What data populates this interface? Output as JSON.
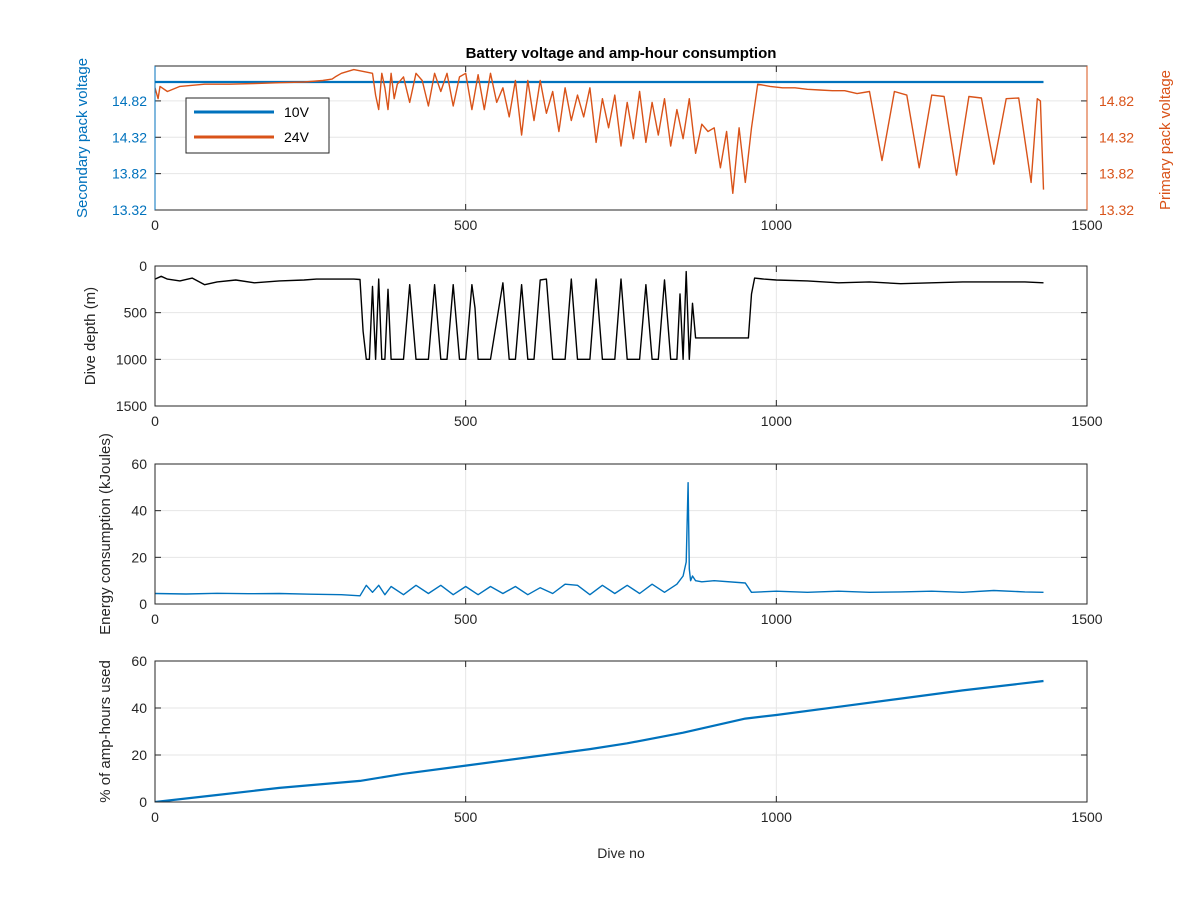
{
  "figure": {
    "title": "Battery voltage and amp-hour consumption",
    "shared_xlabel": "Dive no"
  },
  "colors": {
    "blue": "#0072bd",
    "orange": "#d95319",
    "black": "#000000",
    "grid": "#e6e6e6",
    "axis": "#262626"
  },
  "chart_data": [
    {
      "id": "voltage",
      "type": "line",
      "title": "Battery voltage and amp-hour consumption",
      "xlabel": "",
      "ylabel": "Secondary pack voltage",
      "ylabel_right": "Primary pack voltage",
      "xlim": [
        0,
        1500
      ],
      "xticks": [
        "0",
        "500",
        "1000",
        "1500"
      ],
      "ylim": [
        13.32,
        15.3
      ],
      "yticks": [
        "13.32",
        "13.82",
        "14.32",
        "14.82"
      ],
      "ylim_right": [
        13.32,
        15.3
      ],
      "yticks_right": [
        "13.32",
        "13.82",
        "14.32",
        "14.82"
      ],
      "grid": true,
      "legend": {
        "placement": "top-left",
        "entries": [
          "10V",
          "24V"
        ]
      },
      "series": [
        {
          "name": "10V",
          "axis": "left",
          "color": "#0072bd",
          "x": [
            0,
            1430
          ],
          "y": [
            15.08,
            15.08
          ]
        },
        {
          "name": "24V",
          "axis": "right",
          "color": "#d95319",
          "x": [
            0,
            5,
            8,
            20,
            40,
            80,
            120,
            160,
            200,
            240,
            270,
            285,
            290,
            300,
            320,
            350,
            355,
            360,
            365,
            370,
            375,
            380,
            385,
            390,
            400,
            410,
            420,
            430,
            440,
            450,
            460,
            470,
            480,
            490,
            500,
            510,
            520,
            530,
            540,
            550,
            560,
            570,
            580,
            590,
            600,
            610,
            620,
            630,
            640,
            650,
            660,
            670,
            680,
            690,
            700,
            710,
            720,
            730,
            740,
            750,
            760,
            770,
            780,
            790,
            800,
            810,
            820,
            830,
            840,
            850,
            860,
            870,
            880,
            890,
            900,
            910,
            920,
            930,
            940,
            950,
            960,
            970,
            990,
            1010,
            1030,
            1050,
            1070,
            1090,
            1110,
            1130,
            1150,
            1170,
            1190,
            1210,
            1230,
            1250,
            1270,
            1290,
            1310,
            1330,
            1350,
            1370,
            1390,
            1410,
            1420,
            1425,
            1430
          ],
          "y": [
            15.0,
            14.85,
            15.02,
            14.95,
            15.02,
            15.05,
            15.05,
            15.06,
            15.07,
            15.08,
            15.1,
            15.12,
            15.15,
            15.2,
            15.25,
            15.2,
            14.9,
            14.7,
            15.2,
            15.0,
            14.7,
            15.2,
            14.85,
            15.05,
            15.15,
            14.8,
            15.2,
            15.1,
            14.75,
            15.2,
            14.95,
            15.2,
            14.75,
            15.15,
            15.2,
            14.7,
            15.18,
            14.7,
            15.2,
            14.8,
            15.0,
            14.6,
            15.1,
            14.35,
            15.1,
            14.55,
            15.1,
            14.65,
            14.95,
            14.4,
            15.0,
            14.55,
            14.9,
            14.6,
            15.0,
            14.25,
            14.85,
            14.45,
            14.9,
            14.2,
            14.8,
            14.3,
            14.95,
            14.25,
            14.8,
            14.35,
            14.85,
            14.2,
            14.7,
            14.3,
            14.85,
            14.1,
            14.5,
            14.4,
            14.45,
            13.9,
            14.4,
            13.55,
            14.45,
            13.7,
            14.45,
            15.05,
            15.02,
            15.0,
            15.0,
            14.98,
            14.97,
            14.96,
            14.96,
            14.92,
            14.95,
            14.0,
            14.95,
            14.9,
            13.9,
            14.9,
            14.88,
            13.8,
            14.88,
            14.86,
            13.95,
            14.85,
            14.86,
            13.7,
            14.85,
            14.82,
            13.6
          ]
        }
      ]
    },
    {
      "id": "depth",
      "type": "line",
      "xlabel": "",
      "ylabel": "Dive depth (m)",
      "xlim": [
        0,
        1500
      ],
      "xticks": [
        "0",
        "500",
        "1000",
        "1500"
      ],
      "ylim": [
        0,
        1500
      ],
      "y_reversed": true,
      "yticks": [
        "0",
        "500",
        "1000",
        "1500"
      ],
      "grid": true,
      "series": [
        {
          "name": "",
          "color": "#000000",
          "x": [
            0,
            10,
            20,
            40,
            60,
            80,
            100,
            130,
            160,
            200,
            240,
            260,
            300,
            320,
            330,
            335,
            340,
            345,
            350,
            355,
            360,
            365,
            370,
            375,
            380,
            385,
            390,
            400,
            410,
            420,
            430,
            440,
            450,
            460,
            470,
            480,
            490,
            500,
            510,
            515,
            520,
            530,
            540,
            560,
            570,
            580,
            590,
            600,
            610,
            620,
            630,
            640,
            650,
            660,
            670,
            680,
            690,
            700,
            710,
            720,
            730,
            740,
            750,
            760,
            770,
            780,
            790,
            800,
            810,
            820,
            830,
            840,
            845,
            850,
            855,
            860,
            865,
            870,
            880,
            900,
            940,
            950,
            955,
            960,
            965,
            980,
            1000,
            1050,
            1100,
            1150,
            1200,
            1250,
            1300,
            1350,
            1400,
            1430
          ],
          "y": [
            140,
            110,
            140,
            160,
            130,
            200,
            170,
            150,
            180,
            160,
            150,
            140,
            140,
            140,
            145,
            700,
            1000,
            1000,
            220,
            1000,
            140,
            1000,
            1000,
            250,
            1000,
            1000,
            1000,
            1000,
            200,
            1000,
            1000,
            1000,
            200,
            1000,
            1000,
            200,
            1000,
            1000,
            200,
            450,
            1000,
            1000,
            1000,
            180,
            1000,
            1000,
            200,
            1000,
            1000,
            150,
            140,
            1000,
            1000,
            1000,
            140,
            1000,
            1000,
            1000,
            140,
            1000,
            1000,
            1000,
            140,
            1000,
            1000,
            1000,
            200,
            1000,
            1000,
            150,
            1000,
            1000,
            300,
            1000,
            60,
            1000,
            400,
            770,
            770,
            770,
            770,
            770,
            770,
            300,
            130,
            140,
            150,
            160,
            180,
            170,
            190,
            180,
            170,
            170,
            170,
            180
          ]
        }
      ]
    },
    {
      "id": "energy",
      "type": "line",
      "xlabel": "",
      "ylabel": "Energy consumption (kJoules)",
      "xlim": [
        0,
        1500
      ],
      "xticks": [
        "0",
        "500",
        "1000",
        "1500"
      ],
      "ylim": [
        0,
        60
      ],
      "yticks": [
        "0",
        "20",
        "40",
        "60"
      ],
      "grid": true,
      "series": [
        {
          "name": "",
          "color": "#0072bd",
          "x": [
            0,
            50,
            100,
            150,
            200,
            250,
            300,
            330,
            340,
            350,
            360,
            370,
            380,
            400,
            420,
            440,
            460,
            480,
            500,
            520,
            540,
            560,
            580,
            600,
            620,
            640,
            660,
            680,
            700,
            720,
            740,
            760,
            780,
            800,
            820,
            840,
            850,
            855,
            858,
            860,
            862,
            865,
            870,
            880,
            900,
            950,
            960,
            1000,
            1050,
            1100,
            1150,
            1200,
            1250,
            1300,
            1350,
            1400,
            1430
          ],
          "y": [
            4.5,
            4.3,
            4.6,
            4.4,
            4.5,
            4.2,
            4.0,
            3.5,
            8.0,
            5.0,
            8.0,
            4.0,
            7.5,
            4.0,
            8.0,
            4.5,
            8.0,
            4.0,
            7.5,
            4.0,
            7.5,
            4.5,
            7.5,
            4.0,
            7.0,
            4.5,
            8.5,
            8.0,
            4.0,
            8.0,
            4.5,
            8.0,
            4.5,
            8.5,
            5.0,
            8.5,
            12.0,
            18.0,
            52.0,
            15.0,
            10.0,
            12.0,
            10.0,
            9.5,
            10.0,
            9.0,
            5.0,
            5.5,
            5.0,
            5.5,
            5.0,
            5.2,
            5.5,
            5.0,
            5.8,
            5.2,
            5.0
          ]
        }
      ]
    },
    {
      "id": "amphours",
      "type": "line",
      "xlabel": "Dive no",
      "ylabel": "% of amp-hours used",
      "xlim": [
        0,
        1500
      ],
      "xticks": [
        "0",
        "500",
        "1000",
        "1500"
      ],
      "ylim": [
        0,
        60
      ],
      "yticks": [
        "0",
        "20",
        "40",
        "60"
      ],
      "grid": true,
      "series": [
        {
          "name": "",
          "color": "#0072bd",
          "x": [
            0,
            100,
            200,
            330,
            400,
            500,
            600,
            700,
            760,
            850,
            950,
            1000,
            1100,
            1200,
            1300,
            1430
          ],
          "y": [
            0,
            3,
            6,
            9,
            12,
            15.5,
            19,
            22.5,
            25,
            29.5,
            35.5,
            37,
            40.5,
            44,
            47.5,
            51.5
          ]
        }
      ]
    }
  ]
}
